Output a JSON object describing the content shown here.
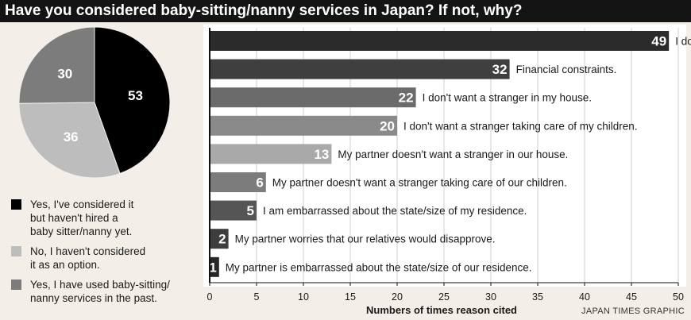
{
  "title": "Have you considered baby-sitting/nanny services in Japan? If not, why?",
  "credit": "JAPAN TIMES GRAPHIC",
  "chart_data": [
    {
      "type": "pie",
      "title": "",
      "slices": [
        {
          "value": 53,
          "label": "Yes, I've considered it\nbut haven't hired a\nbaby sitter/nanny yet.",
          "color": "#000000"
        },
        {
          "value": 36,
          "label": "No, I haven't considered\nit as an option.",
          "color": "#bdbdbd"
        },
        {
          "value": 30,
          "label": "Yes, I have used baby-sitting/\nnanny services in the past.",
          "color": "#7c7c7c"
        }
      ],
      "legend_position": "bottom"
    },
    {
      "type": "bar",
      "orientation": "horizontal",
      "xlabel": "Numbers of times reason cited",
      "xlim": [
        0,
        50
      ],
      "xticks": [
        0,
        5,
        10,
        15,
        20,
        25,
        30,
        35,
        40,
        45,
        50
      ],
      "grid": true,
      "categories": [
        "I don't know where to find a good baby sitter/nanny.",
        "Financial constraints.",
        "I don't want a stranger in my house.",
        "I don't want a stranger taking care of my children.",
        "My partner doesn't want a stranger in our house.",
        "My partner doesn't want a stranger taking care of our children.",
        "I am embarrassed about the state/size of my residence.",
        "My partner worries that our relatives would disapprove.",
        "My partner is embarrassed about the state/size of our residence."
      ],
      "values": [
        49,
        32,
        22,
        20,
        13,
        6,
        5,
        2,
        1
      ],
      "colors": [
        "#2b2b2b",
        "#3f3f3f",
        "#6b6b6b",
        "#8a8a8a",
        "#a9a9a9",
        "#7c7c7c",
        "#555555",
        "#3d3d3d",
        "#262626"
      ]
    }
  ]
}
